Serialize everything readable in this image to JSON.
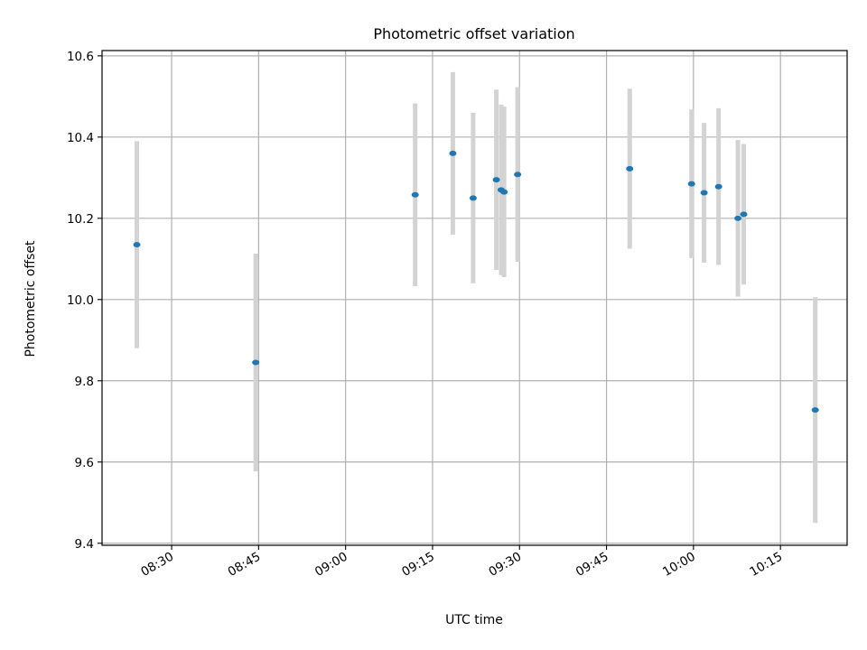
{
  "chart_data": {
    "type": "scatter",
    "title": "Photometric offset variation",
    "xlabel": "UTC time",
    "ylabel": "Photometric offset",
    "grid": true,
    "legend": "none",
    "xlim": [
      "08:18:00",
      "10:26:30"
    ],
    "ylim": [
      9.395,
      10.613
    ],
    "x_ticks": [
      "08:30",
      "08:45",
      "09:00",
      "09:15",
      "09:30",
      "09:45",
      "10:00",
      "10:15"
    ],
    "y_ticks": [
      9.4,
      9.6,
      9.8,
      10.0,
      10.2,
      10.4,
      10.6
    ],
    "y_tick_labels": [
      "9.4",
      "9.6",
      "9.8",
      "10.0",
      "10.2",
      "10.4",
      "10.6"
    ],
    "colors": {
      "point": "#1f77b4",
      "errorbar": "#d3d3d3",
      "grid": "#b0b0b0"
    },
    "series": [
      {
        "points": [
          {
            "x": "08:24:00",
            "y": 10.135,
            "yerr": 0.255
          },
          {
            "x": "08:44:30",
            "y": 9.845,
            "yerr": 0.268
          },
          {
            "x": "09:12:00",
            "y": 10.258,
            "yerr": 0.225
          },
          {
            "x": "09:18:30",
            "y": 10.36,
            "yerr": 0.2
          },
          {
            "x": "09:22:00",
            "y": 10.25,
            "yerr": 0.21
          },
          {
            "x": "09:26:00",
            "y": 10.295,
            "yerr": 0.222
          },
          {
            "x": "09:26:50",
            "y": 10.27,
            "yerr": 0.21
          },
          {
            "x": "09:27:20",
            "y": 10.265,
            "yerr": 0.21
          },
          {
            "x": "09:29:40",
            "y": 10.308,
            "yerr": 0.215
          },
          {
            "x": "09:49:00",
            "y": 10.322,
            "yerr": 0.197
          },
          {
            "x": "09:59:40",
            "y": 10.285,
            "yerr": 0.183
          },
          {
            "x": "10:01:50",
            "y": 10.263,
            "yerr": 0.172
          },
          {
            "x": "10:04:20",
            "y": 10.278,
            "yerr": 0.193
          },
          {
            "x": "10:07:40",
            "y": 10.2,
            "yerr": 0.193
          },
          {
            "x": "10:08:40",
            "y": 10.21,
            "yerr": 0.173
          },
          {
            "x": "10:21:00",
            "y": 9.728,
            "yerr": 0.278
          }
        ]
      }
    ]
  }
}
